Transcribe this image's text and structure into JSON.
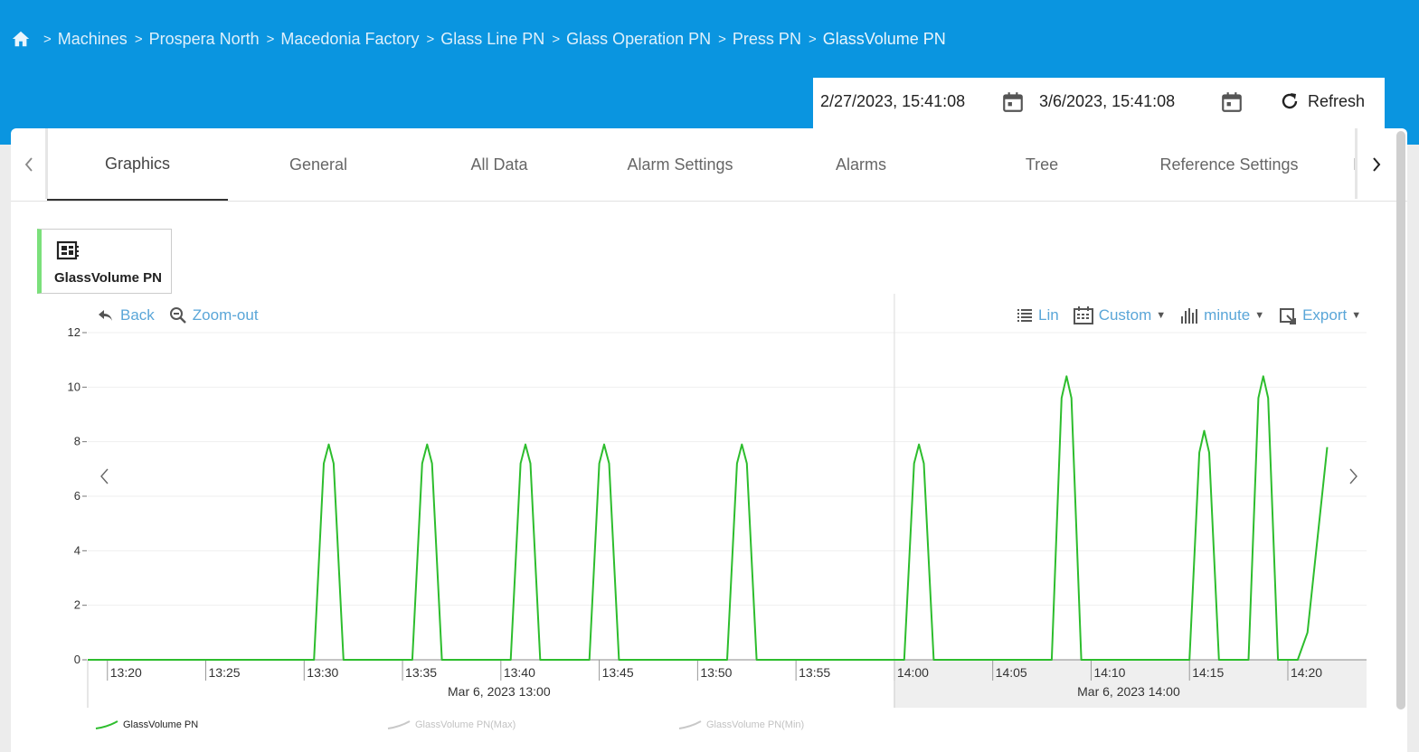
{
  "breadcrumb": {
    "home_icon": "home-icon",
    "items": [
      "Machines",
      "Prospera North",
      "Macedonia Factory",
      "Glass Line PN",
      "Glass Operation PN",
      "Press PN",
      "GlassVolume PN"
    ]
  },
  "date_range": {
    "start": "2/27/2023, 15:41:08",
    "end": "3/6/2023, 15:41:08",
    "refresh_label": "Refresh"
  },
  "tabs": {
    "items": [
      "Graphics",
      "General",
      "All Data",
      "Alarm Settings",
      "Alarms",
      "Tree",
      "Reference Settings"
    ],
    "active": "Graphics",
    "partial_next": "I"
  },
  "series_card": {
    "label": "GlassVolume PN"
  },
  "toolbar": {
    "back": "Back",
    "zoom_out": "Zoom-out",
    "scale": "Lin",
    "range": "Custom",
    "interval": "minute",
    "export": "Export"
  },
  "colors": {
    "header": "#0a95e0",
    "series": "#2dbd2d",
    "link": "#5aa6d8",
    "legend_inactive": "#c8c8c8"
  },
  "chart_data": {
    "type": "line",
    "ylim": [
      0,
      12
    ],
    "yticks": [
      0,
      2,
      4,
      6,
      8,
      10,
      12
    ],
    "xlim": [
      "13:19:00",
      "14:24:00"
    ],
    "x_ticks": [
      "13:20",
      "13:25",
      "13:30",
      "13:35",
      "13:40",
      "13:45",
      "13:50",
      "13:55",
      "14:00",
      "14:05",
      "14:10",
      "14:15",
      "14:20"
    ],
    "period_labels": [
      {
        "time": "13:40",
        "label": "Mar 6, 2023 13:00"
      },
      {
        "time": "14:12",
        "label": "Mar 6, 2023 14:00"
      }
    ],
    "series": [
      {
        "name": "GlassVolume PN",
        "points": [
          [
            "13:19:00",
            0
          ],
          [
            "13:30:30",
            0
          ],
          [
            "13:31:00",
            7.2
          ],
          [
            "13:31:15",
            7.9
          ],
          [
            "13:31:30",
            7.2
          ],
          [
            "13:32:00",
            0
          ],
          [
            "13:35:30",
            0
          ],
          [
            "13:36:00",
            7.2
          ],
          [
            "13:36:15",
            7.9
          ],
          [
            "13:36:30",
            7.2
          ],
          [
            "13:37:00",
            0
          ],
          [
            "13:40:30",
            0
          ],
          [
            "13:41:00",
            7.2
          ],
          [
            "13:41:15",
            7.9
          ],
          [
            "13:41:30",
            7.2
          ],
          [
            "13:42:00",
            0
          ],
          [
            "13:44:30",
            0
          ],
          [
            "13:45:00",
            7.2
          ],
          [
            "13:45:15",
            7.9
          ],
          [
            "13:45:30",
            7.2
          ],
          [
            "13:46:00",
            0
          ],
          [
            "13:51:30",
            0
          ],
          [
            "13:52:00",
            7.2
          ],
          [
            "13:52:15",
            7.9
          ],
          [
            "13:52:30",
            7.2
          ],
          [
            "13:53:00",
            0
          ],
          [
            "14:00:30",
            0
          ],
          [
            "14:01:00",
            7.2
          ],
          [
            "14:01:15",
            7.9
          ],
          [
            "14:01:30",
            7.2
          ],
          [
            "14:02:00",
            0
          ],
          [
            "14:08:00",
            0
          ],
          [
            "14:08:30",
            9.6
          ],
          [
            "14:08:45",
            10.4
          ],
          [
            "14:09:00",
            9.6
          ],
          [
            "14:09:30",
            0
          ],
          [
            "14:15:00",
            0
          ],
          [
            "14:15:30",
            7.6
          ],
          [
            "14:15:45",
            8.4
          ],
          [
            "14:16:00",
            7.6
          ],
          [
            "14:16:30",
            0
          ],
          [
            "14:18:00",
            0
          ],
          [
            "14:18:30",
            9.6
          ],
          [
            "14:18:45",
            10.4
          ],
          [
            "14:19:00",
            9.6
          ],
          [
            "14:19:30",
            0
          ],
          [
            "14:20:30",
            0
          ],
          [
            "14:21:00",
            1.0
          ],
          [
            "14:22:00",
            7.8
          ]
        ]
      }
    ],
    "legend": [
      "GlassVolume PN",
      "GlassVolume PN(Max)",
      "GlassVolume PN(Min)"
    ],
    "grid": true
  }
}
